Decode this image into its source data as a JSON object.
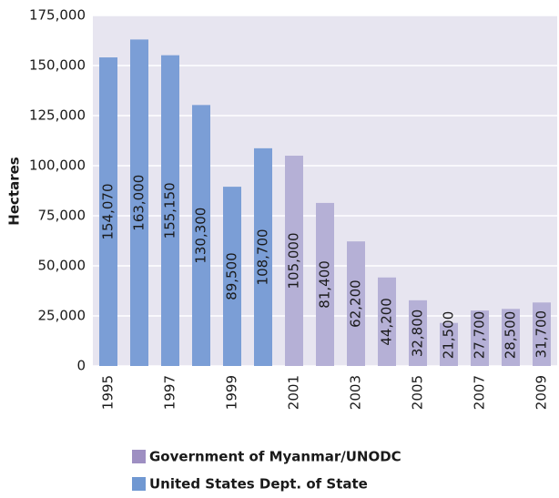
{
  "chart_data": {
    "type": "bar",
    "y_label": "Hectares",
    "categories": [
      "1995",
      null,
      "1997",
      null,
      "1999",
      null,
      "2001",
      null,
      "2003",
      null,
      "2005",
      null,
      "2007",
      null,
      "2009"
    ],
    "series": [
      {
        "name": "Government of Myanmar/UNODC",
        "color": "#b5b0d6",
        "values": [
          null,
          null,
          null,
          null,
          null,
          null,
          105000,
          81400,
          62200,
          44200,
          32800,
          21500,
          27700,
          28500,
          31700
        ],
        "value_labels": [
          null,
          null,
          null,
          null,
          null,
          null,
          "105,000",
          "81,400",
          "62,200",
          "44,200",
          "32,800",
          "21,500",
          "27,700",
          "28,500",
          "31,700"
        ]
      },
      {
        "name": "United States Dept. of State",
        "color": "#7b9ed6",
        "values": [
          154070,
          163000,
          155150,
          130300,
          89500,
          108700,
          null,
          null,
          null,
          null,
          null,
          null,
          null,
          null,
          null
        ],
        "value_labels": [
          "154,070",
          "163,000",
          "155,150",
          "130,300",
          "89,500",
          "108,700",
          null,
          null,
          null,
          null,
          null,
          null,
          null,
          null,
          null
        ]
      }
    ],
    "legend_colors": [
      "#9e8fc2",
      "#7098d2"
    ],
    "ylim": [
      0,
      175000
    ],
    "yticks": [
      0,
      {
        "value": 25000,
        "label": "25,000"
      },
      {
        "value": 50000,
        "label": "50,000"
      },
      {
        "value": 75000,
        "label": "75,000"
      },
      {
        "value": 100000,
        "label": "100,000"
      },
      {
        "value": 125000,
        "label": "125,000"
      },
      {
        "value": 150000,
        "label": "150,000"
      },
      {
        "value": 175000,
        "label": "175,000"
      }
    ],
    "grid": true
  }
}
